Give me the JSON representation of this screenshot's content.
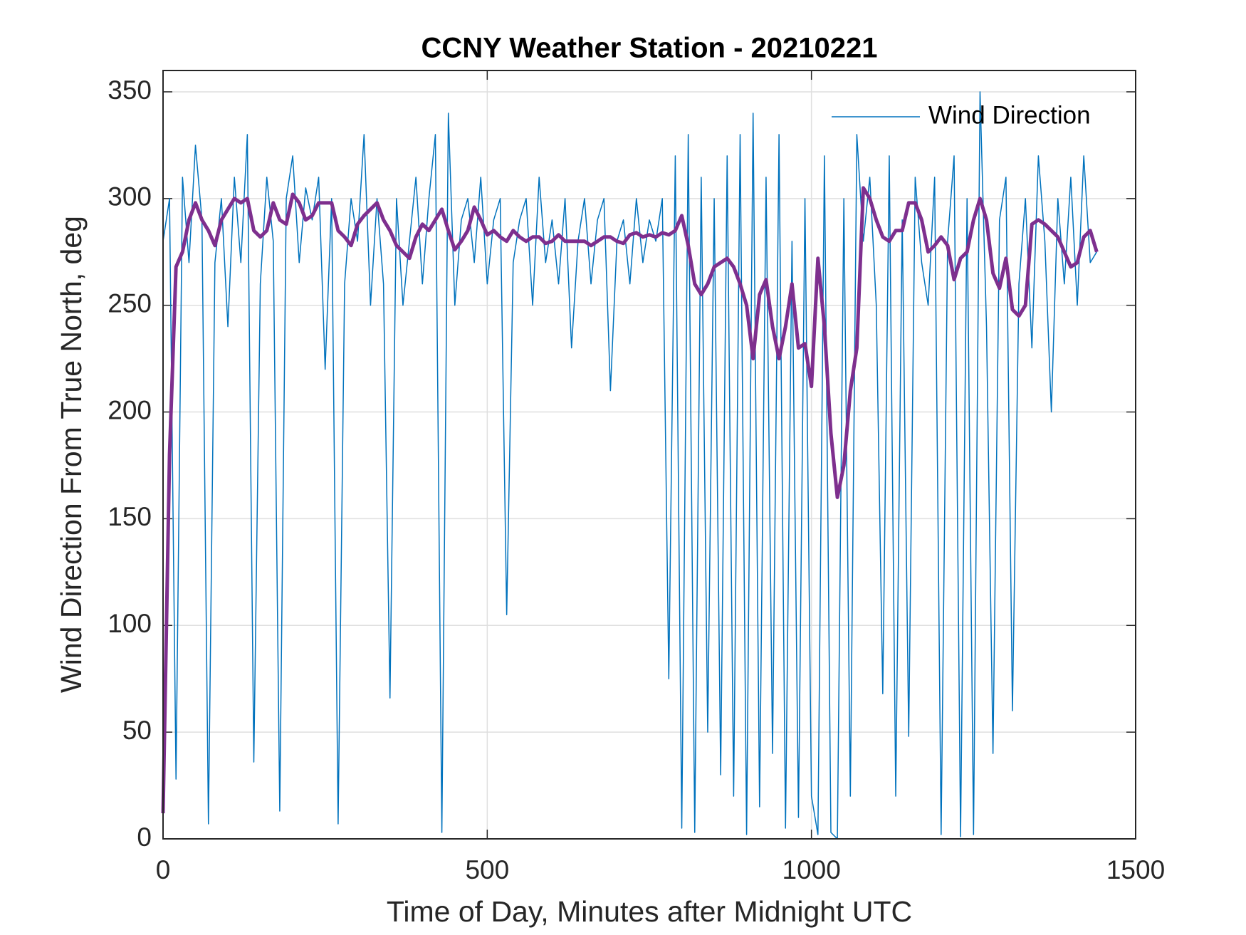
{
  "chart_data": {
    "type": "line",
    "title": "CCNY Weather Station - 20210221",
    "xlabel": "Time of Day, Minutes after Midnight UTC",
    "ylabel": "Wind Direction From True North, deg",
    "x": [
      0,
      10,
      20,
      30,
      40,
      50,
      60,
      70,
      80,
      90,
      100,
      110,
      120,
      130,
      140,
      150,
      160,
      170,
      180,
      190,
      200,
      210,
      220,
      230,
      240,
      250,
      260,
      270,
      280,
      290,
      300,
      310,
      320,
      330,
      340,
      350,
      360,
      370,
      380,
      390,
      400,
      410,
      420,
      430,
      440,
      450,
      460,
      470,
      480,
      490,
      500,
      510,
      520,
      530,
      540,
      550,
      560,
      570,
      580,
      590,
      600,
      610,
      620,
      630,
      640,
      650,
      660,
      670,
      680,
      690,
      700,
      710,
      720,
      730,
      740,
      750,
      760,
      770,
      780,
      790,
      800,
      810,
      820,
      830,
      840,
      850,
      860,
      870,
      880,
      890,
      900,
      910,
      920,
      930,
      940,
      950,
      960,
      970,
      980,
      990,
      1000,
      1010,
      1020,
      1030,
      1040,
      1050,
      1060,
      1070,
      1080,
      1090,
      1100,
      1110,
      1120,
      1130,
      1140,
      1150,
      1160,
      1170,
      1180,
      1190,
      1200,
      1210,
      1220,
      1230,
      1240,
      1250,
      1260,
      1270,
      1280,
      1290,
      1300,
      1310,
      1320,
      1330,
      1340,
      1350,
      1360,
      1370,
      1380,
      1390,
      1400,
      1410,
      1420,
      1430,
      1440
    ],
    "series": [
      {
        "name": "Wind Direction",
        "color": "#0072BD",
        "width": 1.5,
        "values": [
          280,
          300,
          28,
          310,
          270,
          325,
          290,
          7,
          270,
          300,
          240,
          310,
          270,
          330,
          36,
          260,
          310,
          280,
          13,
          300,
          320,
          270,
          305,
          290,
          310,
          220,
          300,
          7,
          260,
          300,
          280,
          330,
          250,
          300,
          260,
          66,
          300,
          250,
          280,
          310,
          260,
          300,
          330,
          3,
          340,
          250,
          290,
          300,
          270,
          310,
          260,
          290,
          300,
          105,
          270,
          290,
          300,
          250,
          310,
          270,
          290,
          260,
          300,
          230,
          280,
          300,
          260,
          290,
          300,
          210,
          280,
          290,
          260,
          300,
          270,
          290,
          280,
          300,
          75,
          320,
          5,
          330,
          3,
          310,
          50,
          300,
          30,
          320,
          20,
          330,
          2,
          340,
          15,
          310,
          40,
          330,
          5,
          280,
          10,
          300,
          20,
          2,
          320,
          3,
          0,
          300,
          20,
          330,
          280,
          310,
          250,
          68,
          320,
          20,
          290,
          48,
          310,
          270,
          250,
          310,
          2,
          280,
          320,
          1,
          300,
          2,
          350,
          240,
          40,
          290,
          310,
          60,
          260,
          300,
          230,
          320,
          280,
          200,
          300,
          260,
          310,
          250,
          320,
          270,
          275
        ]
      },
      {
        "color": "#7E2F8E",
        "width": 5,
        "values": [
          12,
          180,
          268,
          275,
          290,
          298,
          290,
          285,
          278,
          290,
          295,
          300,
          298,
          300,
          285,
          282,
          285,
          298,
          290,
          288,
          302,
          298,
          290,
          292,
          298,
          298,
          298,
          285,
          282,
          278,
          288,
          292,
          295,
          298,
          290,
          285,
          278,
          275,
          272,
          282,
          288,
          285,
          290,
          295,
          285,
          276,
          280,
          285,
          296,
          290,
          283,
          285,
          282,
          280,
          285,
          282,
          280,
          282,
          282,
          279,
          280,
          283,
          280,
          280,
          280,
          280,
          278,
          280,
          282,
          282,
          280,
          279,
          283,
          284,
          282,
          283,
          282,
          284,
          283,
          285,
          292,
          278,
          260,
          255,
          260,
          268,
          270,
          272,
          268,
          260,
          250,
          225,
          255,
          262,
          240,
          225,
          240,
          260,
          230,
          232,
          212,
          272,
          240,
          190,
          160,
          175,
          210,
          230,
          305,
          300,
          290,
          282,
          280,
          285,
          285,
          298,
          298,
          290,
          275,
          278,
          282,
          278,
          262,
          272,
          275,
          290,
          300,
          290,
          265,
          258,
          272,
          248,
          245,
          250,
          288,
          290,
          288,
          285,
          282,
          275,
          268,
          270,
          282,
          285,
          275
        ]
      }
    ],
    "xlim": [
      0,
      1500
    ],
    "xticks": [
      0,
      500,
      1000,
      1500
    ],
    "ylim": [
      0,
      360
    ],
    "yticks": [
      0,
      50,
      100,
      150,
      200,
      250,
      300,
      350
    ],
    "grid": true,
    "legend": "upper right"
  }
}
